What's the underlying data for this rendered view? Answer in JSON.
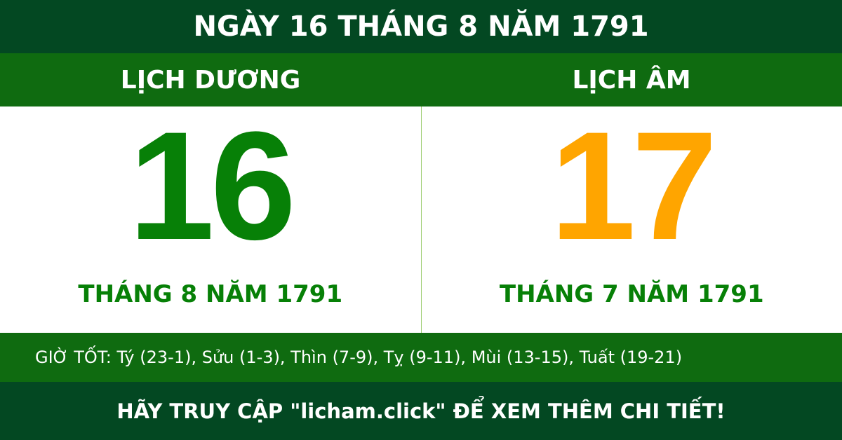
{
  "title": "NGÀY 16 THÁNG 8 NĂM 1791",
  "solar": {
    "heading": "LỊCH DƯƠNG",
    "day": "16",
    "month_year": "THÁNG 8 NĂM 1791"
  },
  "lunar": {
    "heading": "LỊCH ÂM",
    "day": "17",
    "month_year": "THÁNG 7 NĂM 1791"
  },
  "good_hours": "GIỜ TỐT: Tý (23-1), Sửu (1-3), Thìn (7-9), Tỵ (9-11), Mùi (13-15), Tuất (19-21)",
  "footer": "HÃY TRUY CẬP \"licham.click\" ĐỂ XEM THÊM CHI TIẾT!",
  "colors": {
    "dark_green": "#034822",
    "green": "#0f6b10",
    "solar_day": "#078007",
    "lunar_day": "#ffa500"
  }
}
